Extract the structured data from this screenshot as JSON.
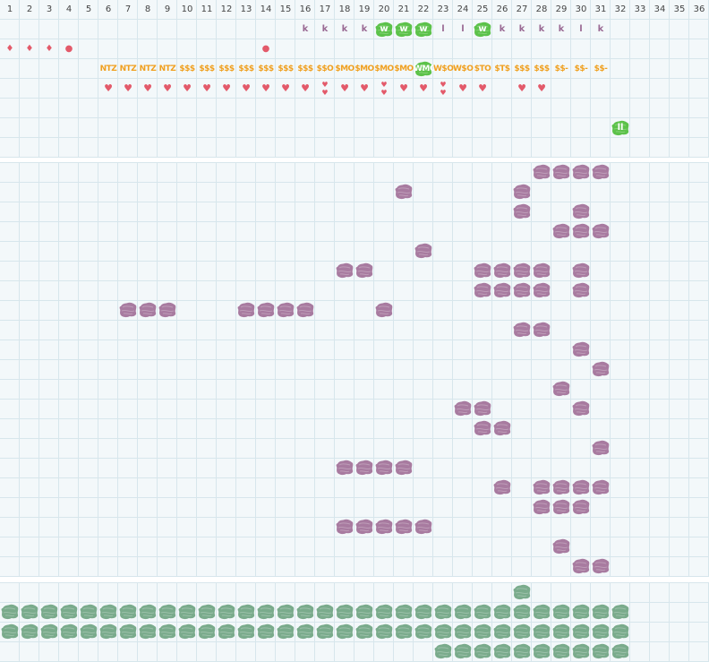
{
  "columns": [
    "1",
    "2",
    "3",
    "4",
    "5",
    "6",
    "7",
    "8",
    "9",
    "10",
    "11",
    "12",
    "13",
    "14",
    "15",
    "16",
    "17",
    "18",
    "19",
    "20",
    "21",
    "22",
    "23",
    "24",
    "25",
    "26",
    "27",
    "28",
    "29",
    "30",
    "31",
    "32",
    "33",
    "34",
    "35",
    "36"
  ],
  "colors": {
    "purple": "#a87ba0",
    "green_highlight": "#5cc24a",
    "green_bottom": "#7aab8c",
    "orange": "#f0a020",
    "red": "#e35a6a",
    "k_color": "#9a6a94",
    "bg": "#f3f8fa",
    "grid": "#d7e6ec"
  },
  "top_rows": {
    "row1": [
      {
        "col": 16,
        "t": "k"
      },
      {
        "col": 17,
        "t": "k"
      },
      {
        "col": 18,
        "t": "k"
      },
      {
        "col": 19,
        "t": "k"
      },
      {
        "col": 20,
        "t": "w",
        "hl": true
      },
      {
        "col": 21,
        "t": "w",
        "hl": true
      },
      {
        "col": 22,
        "t": "w",
        "hl": true
      },
      {
        "col": 23,
        "t": "l"
      },
      {
        "col": 24,
        "t": "l"
      },
      {
        "col": 25,
        "t": "w",
        "hl": true
      },
      {
        "col": 26,
        "t": "k"
      },
      {
        "col": 27,
        "t": "k"
      },
      {
        "col": 28,
        "t": "k"
      },
      {
        "col": 29,
        "t": "k"
      },
      {
        "col": 30,
        "t": "l"
      },
      {
        "col": 31,
        "t": "k"
      }
    ],
    "row2": [
      {
        "col": 1,
        "t": "♦"
      },
      {
        "col": 2,
        "t": "♦"
      },
      {
        "col": 3,
        "t": "♦"
      },
      {
        "col": 4,
        "t": "●"
      },
      {
        "col": 14,
        "t": "●"
      }
    ],
    "row3": [
      {
        "col": 6,
        "t": "NTZ"
      },
      {
        "col": 7,
        "t": "NTZ"
      },
      {
        "col": 8,
        "t": "NTZ"
      },
      {
        "col": 9,
        "t": "NTZ"
      },
      {
        "col": 10,
        "t": "$$$"
      },
      {
        "col": 11,
        "t": "$$$"
      },
      {
        "col": 12,
        "t": "$$$"
      },
      {
        "col": 13,
        "t": "$$$"
      },
      {
        "col": 14,
        "t": "$$$"
      },
      {
        "col": 15,
        "t": "$$$"
      },
      {
        "col": 16,
        "t": "$$$"
      },
      {
        "col": 17,
        "t": "$$O"
      },
      {
        "col": 18,
        "t": "$MO"
      },
      {
        "col": 19,
        "t": "$MO"
      },
      {
        "col": 20,
        "t": "$MO"
      },
      {
        "col": 21,
        "t": "$MO"
      },
      {
        "col": 22,
        "t": "WMO",
        "hl": true
      },
      {
        "col": 23,
        "t": "W$O"
      },
      {
        "col": 24,
        "t": "W$O"
      },
      {
        "col": 25,
        "t": "$TO"
      },
      {
        "col": 26,
        "t": "$T$"
      },
      {
        "col": 27,
        "t": "$$$"
      },
      {
        "col": 28,
        "t": "$$$"
      },
      {
        "col": 29,
        "t": "$$-"
      },
      {
        "col": 30,
        "t": "$$-"
      },
      {
        "col": 31,
        "t": "$$-"
      }
    ],
    "row4": [
      {
        "col": 6,
        "t": "♥"
      },
      {
        "col": 7,
        "t": "♥"
      },
      {
        "col": 8,
        "t": "♥"
      },
      {
        "col": 9,
        "t": "♥"
      },
      {
        "col": 10,
        "t": "♥"
      },
      {
        "col": 11,
        "t": "♥"
      },
      {
        "col": 12,
        "t": "♥"
      },
      {
        "col": 13,
        "t": "♥"
      },
      {
        "col": 14,
        "t": "♥"
      },
      {
        "col": 15,
        "t": "♥"
      },
      {
        "col": 16,
        "t": "♥"
      },
      {
        "col": 17,
        "t": "♥♥"
      },
      {
        "col": 18,
        "t": "♥"
      },
      {
        "col": 19,
        "t": "♥"
      },
      {
        "col": 20,
        "t": "♥♥"
      },
      {
        "col": 21,
        "t": "♥"
      },
      {
        "col": 22,
        "t": "♥"
      },
      {
        "col": 23,
        "t": "♥♥"
      },
      {
        "col": 24,
        "t": "♥"
      },
      {
        "col": 25,
        "t": "♥"
      },
      {
        "col": 27,
        "t": "♥"
      },
      {
        "col": 28,
        "t": "♥"
      }
    ],
    "row6": [
      {
        "col": 32,
        "t": "ll",
        "hl": true
      }
    ]
  },
  "middle_rows": [
    [
      28,
      29,
      30,
      31
    ],
    [
      21,
      27
    ],
    [
      27,
      30
    ],
    [
      29,
      30,
      31
    ],
    [
      22
    ],
    [
      18,
      19,
      25,
      26,
      27,
      28,
      30
    ],
    [
      25,
      26,
      27,
      28,
      30
    ],
    [
      7,
      8,
      9,
      13,
      14,
      15,
      16,
      20
    ],
    [
      27,
      28
    ],
    [
      30
    ],
    [
      31
    ],
    [
      29
    ],
    [
      24,
      25,
      30
    ],
    [
      25,
      26
    ],
    [
      31
    ],
    [
      18,
      19,
      20,
      21
    ],
    [
      26,
      28,
      29,
      30,
      31
    ],
    [
      28,
      29,
      30
    ],
    [
      18,
      19,
      20,
      21,
      22
    ],
    [
      29
    ],
    [
      30,
      31
    ]
  ],
  "bottom_rows": [
    [
      27
    ],
    [
      1,
      2,
      3,
      4,
      5,
      6,
      7,
      8,
      9,
      10,
      11,
      12,
      13,
      14,
      15,
      16,
      17,
      18,
      19,
      20,
      21,
      22,
      23,
      24,
      25,
      26,
      27,
      28,
      29,
      30,
      31,
      32
    ],
    [
      1,
      2,
      3,
      4,
      5,
      6,
      7,
      8,
      9,
      10,
      11,
      12,
      13,
      14,
      15,
      16,
      17,
      18,
      19,
      20,
      21,
      22,
      23,
      24,
      25,
      26,
      27,
      28,
      29,
      30,
      31,
      32
    ],
    [
      23,
      24,
      25,
      26,
      27,
      28,
      29,
      30,
      31,
      32
    ]
  ]
}
